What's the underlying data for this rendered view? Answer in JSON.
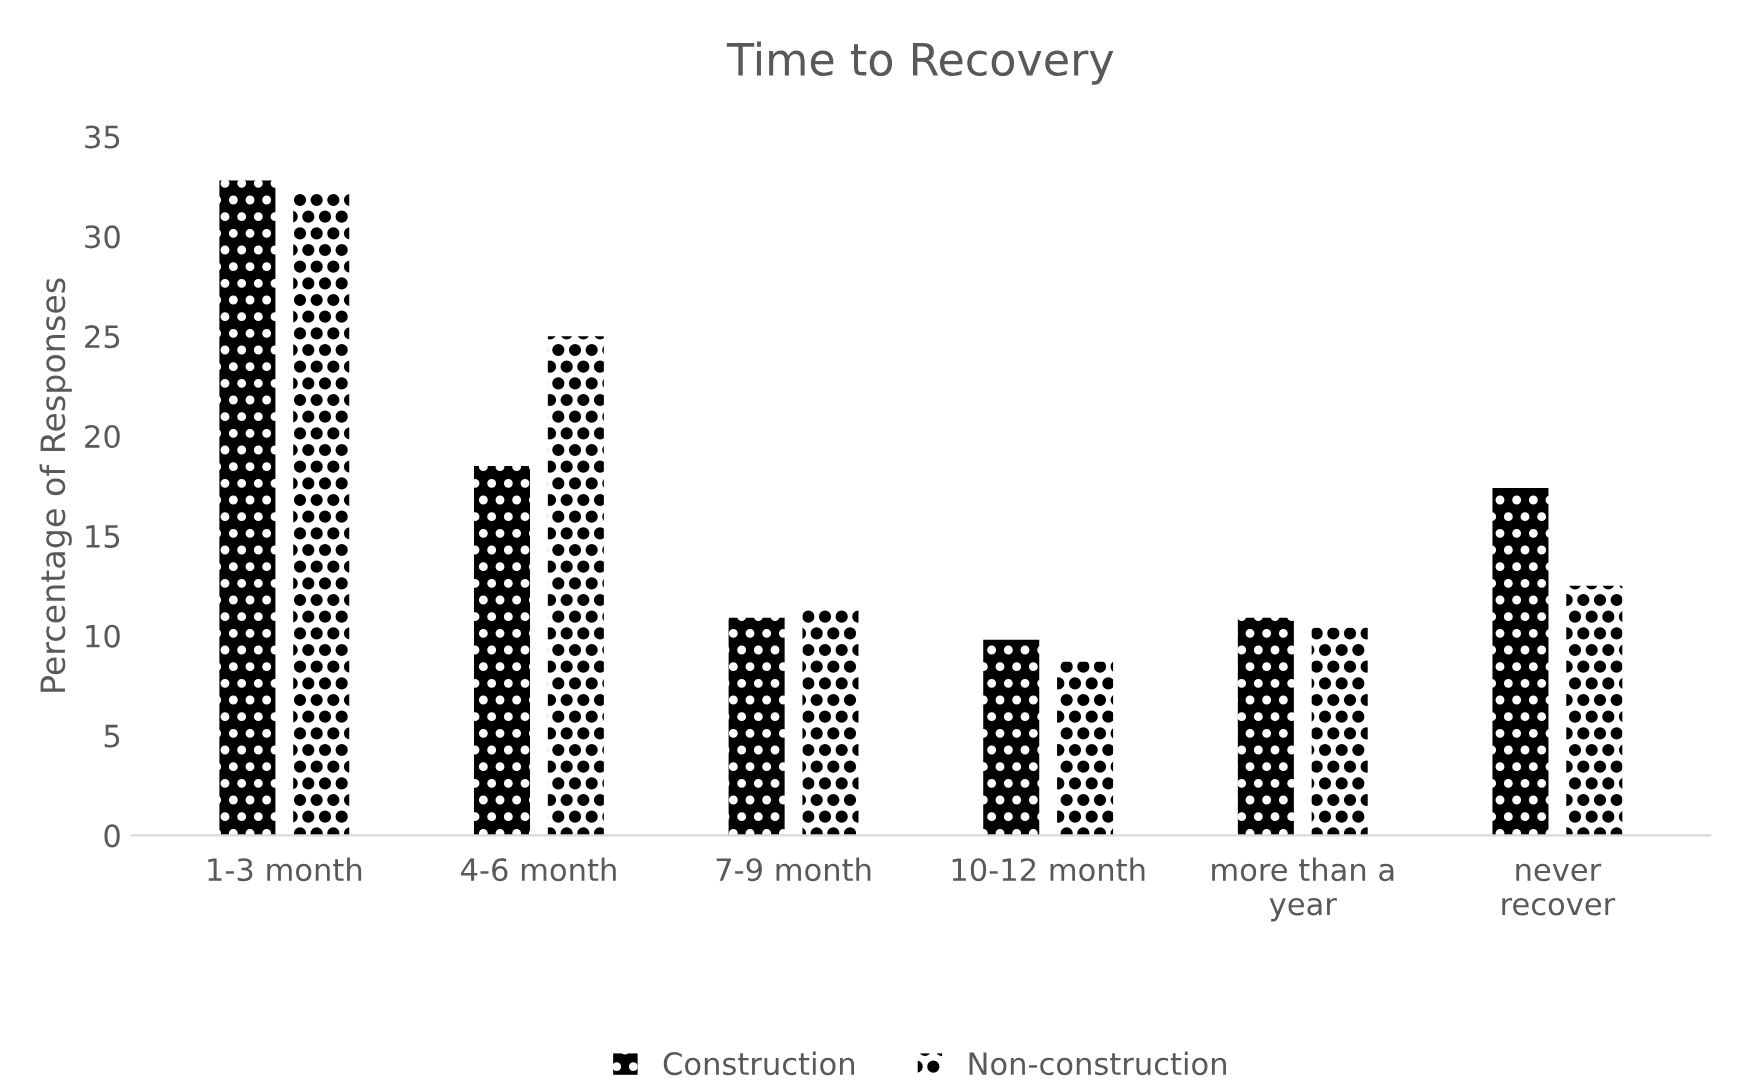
{
  "chart_data": {
    "type": "bar",
    "title": "Time to Recovery",
    "ylabel": "Percentage of Responses",
    "categories": [
      "1-3 month",
      "4-6 month",
      "7-9 month",
      "10-12 month",
      "more than a\nyear",
      "never\nrecover"
    ],
    "series": [
      {
        "name": "Construction",
        "color": "#000000",
        "values": [
          32.8,
          18.5,
          10.9,
          9.8,
          10.9,
          17.4
        ]
      },
      {
        "name": "Non-construction",
        "color": "#000000",
        "values": [
          32.2,
          25.0,
          11.3,
          8.7,
          10.4,
          12.5
        ]
      }
    ],
    "ylim": [
      0,
      35
    ],
    "yticks": [
      0,
      5,
      10,
      15,
      20,
      25,
      30,
      35
    ],
    "grid": false,
    "legend": "bottom"
  }
}
